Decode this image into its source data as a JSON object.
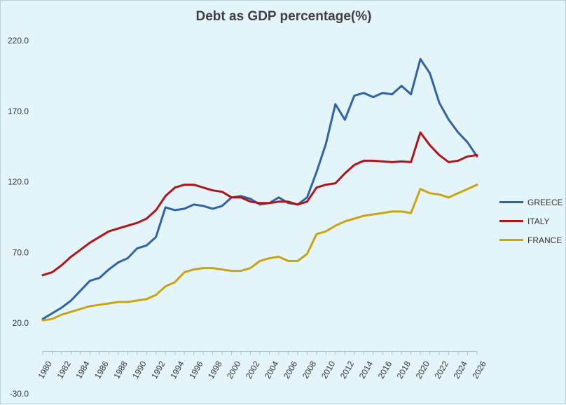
{
  "chart_data": {
    "type": "line",
    "title": "Debt as GDP percentage(%)",
    "xlabel": "",
    "ylabel": "",
    "ylim": [
      -30,
      220
    ],
    "y_ticks": [
      "220.0",
      "170.0",
      "120.0",
      "70.0",
      "20.0",
      "-30.0"
    ],
    "y_tick_values": [
      220,
      170,
      120,
      70,
      20,
      -30
    ],
    "x_tick_labels": [
      "1980",
      "1982",
      "1984",
      "1986",
      "1988",
      "1990",
      "1992",
      "1994",
      "1996",
      "1998",
      "2000",
      "2002",
      "2004",
      "2006",
      "2008",
      "2010",
      "2012",
      "2014",
      "2016",
      "2018",
      "2020",
      "2022",
      "2024",
      "2026"
    ],
    "legend_position": "right",
    "grid": "horizontal",
    "x": [
      1980,
      1981,
      1982,
      1983,
      1984,
      1985,
      1986,
      1987,
      1988,
      1989,
      1990,
      1991,
      1992,
      1993,
      1994,
      1995,
      1996,
      1997,
      1998,
      1999,
      2000,
      2001,
      2002,
      2003,
      2004,
      2005,
      2006,
      2007,
      2008,
      2009,
      2010,
      2011,
      2012,
      2013,
      2014,
      2015,
      2016,
      2017,
      2018,
      2019,
      2020,
      2021,
      2022,
      2023,
      2024,
      2025,
      2026
    ],
    "series": [
      {
        "name": "GREECE",
        "color": "#2e63a8",
        "values": [
          23,
          27,
          31,
          36,
          43,
          50,
          52,
          58,
          63,
          66,
          73,
          75,
          81,
          102,
          100,
          101,
          104,
          103,
          101,
          103,
          109,
          110,
          108,
          104,
          105,
          109,
          105,
          104,
          109,
          127,
          147,
          175,
          164,
          181,
          183,
          180,
          183,
          182,
          188,
          182,
          207,
          197,
          176,
          164,
          155,
          148,
          138
        ]
      },
      {
        "name": "ITALY",
        "color": "#b01418",
        "values": [
          54,
          56,
          61,
          67,
          72,
          77,
          81,
          85,
          87,
          89,
          91,
          94,
          100,
          110,
          116,
          118,
          118,
          116,
          114,
          113,
          109,
          109,
          106,
          105,
          105,
          106,
          106,
          104,
          106,
          116,
          118,
          119,
          126,
          132,
          135,
          135,
          134.5,
          134,
          134.5,
          134,
          155,
          146,
          139,
          134,
          135,
          138,
          139
        ]
      },
      {
        "name": "FRANCE",
        "color": "#c9a311",
        "values": [
          22,
          23,
          26,
          28,
          30,
          32,
          33,
          34,
          35,
          35,
          36,
          37,
          40,
          46,
          49,
          56,
          58,
          59,
          59,
          58,
          57,
          57,
          59,
          64,
          66,
          67,
          64,
          64,
          69,
          83,
          85,
          89,
          92,
          94,
          96,
          97,
          98,
          99,
          99,
          98,
          115,
          112,
          111,
          109,
          112,
          115,
          118
        ]
      }
    ]
  }
}
